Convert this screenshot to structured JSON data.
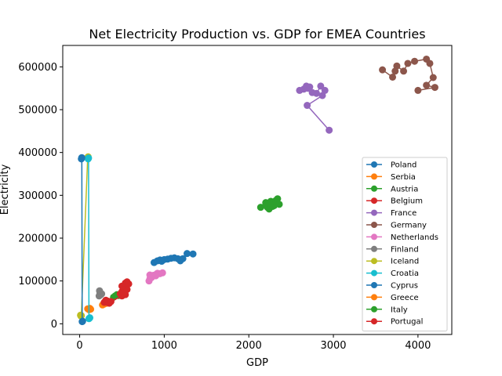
{
  "chart_data": {
    "type": "line",
    "title": "Net Electricity Production vs. GDP for EMEA Countries",
    "xlabel": "GDP",
    "ylabel": "Electricity",
    "xlim": [
      -200,
      4400
    ],
    "ylim": [
      -25000,
      650000
    ],
    "x_ticks": [
      0,
      1000,
      2000,
      3000,
      4000
    ],
    "y_ticks": [
      0,
      100000,
      200000,
      300000,
      400000,
      500000,
      600000
    ],
    "legend_position": "lower-right",
    "series": [
      {
        "name": "Poland",
        "color": "#1f77b4",
        "points": [
          [
            880,
            143000
          ],
          [
            920,
            147000
          ],
          [
            950,
            149000
          ],
          [
            970,
            146000
          ],
          [
            1000,
            150000
          ],
          [
            1040,
            151000
          ],
          [
            1080,
            153000
          ],
          [
            1120,
            154000
          ],
          [
            1160,
            152000
          ],
          [
            1190,
            147000
          ],
          [
            1220,
            152000
          ],
          [
            1270,
            164000
          ],
          [
            1340,
            163000
          ]
        ]
      },
      {
        "name": "Serbia",
        "color": "#ff7f0e",
        "points": [
          [
            95,
            35000
          ],
          [
            110,
            33000
          ],
          [
            120,
            36000
          ],
          [
            130,
            34000
          ]
        ]
      },
      {
        "name": "Austria",
        "color": "#2ca02c",
        "points": [
          [
            400,
            62000
          ],
          [
            420,
            65000
          ],
          [
            440,
            68000
          ],
          [
            460,
            66000
          ],
          [
            480,
            67000
          ]
        ]
      },
      {
        "name": "Belgium",
        "color": "#d62728",
        "points": [
          [
            480,
            70000
          ],
          [
            500,
            75000
          ],
          [
            520,
            80000
          ],
          [
            540,
            85000
          ],
          [
            560,
            90000
          ],
          [
            580,
            93000
          ]
        ]
      },
      {
        "name": "France",
        "color": "#9467bd",
        "points": [
          [
            2600,
            545000
          ],
          [
            2650,
            548000
          ],
          [
            2680,
            555000
          ],
          [
            2700,
            550000
          ],
          [
            2720,
            553000
          ],
          [
            2750,
            540000
          ],
          [
            2800,
            538000
          ],
          [
            2850,
            555000
          ],
          [
            2900,
            545000
          ],
          [
            2870,
            533000
          ],
          [
            2690,
            510000
          ],
          [
            2950,
            452000
          ]
        ]
      },
      {
        "name": "Germany",
        "color": "#8c564b",
        "points": [
          [
            3580,
            593000
          ],
          [
            3700,
            576000
          ],
          [
            3730,
            590000
          ],
          [
            3750,
            602000
          ],
          [
            3830,
            590000
          ],
          [
            3880,
            608000
          ],
          [
            3960,
            613000
          ],
          [
            4100,
            618000
          ],
          [
            4140,
            608000
          ],
          [
            4180,
            575000
          ],
          [
            4100,
            557000
          ],
          [
            4200,
            552000
          ],
          [
            4000,
            545000
          ]
        ]
      },
      {
        "name": "Netherlands",
        "color": "#e377c2",
        "points": [
          [
            820,
            100000
          ],
          [
            830,
            105000
          ],
          [
            850,
            108000
          ],
          [
            870,
            113000
          ],
          [
            900,
            115000
          ],
          [
            920,
            118000
          ],
          [
            950,
            117000
          ],
          [
            980,
            119000
          ],
          [
            830,
            114000
          ],
          [
            900,
            112000
          ]
        ]
      },
      {
        "name": "Finland",
        "color": "#7f7f7f",
        "points": [
          [
            230,
            65000
          ],
          [
            240,
            72000
          ],
          [
            250,
            68000
          ],
          [
            260,
            70000
          ],
          [
            235,
            77000
          ]
        ]
      },
      {
        "name": "Iceland",
        "color": "#bcbd22",
        "points": [
          [
            10,
            20000
          ],
          [
            15,
            18000
          ],
          [
            20,
            19000
          ],
          [
            95,
            388000
          ],
          [
            100,
            390000
          ]
        ]
      },
      {
        "name": "Croatia",
        "color": "#17becf",
        "points": [
          [
            100,
            385000
          ],
          [
            105,
            387000
          ],
          [
            110,
            12000
          ],
          [
            115,
            13000
          ],
          [
            120,
            14000
          ]
        ]
      },
      {
        "name": "Cyprus",
        "color": "#1f77b4",
        "points": [
          [
            20,
            385000
          ],
          [
            25,
            388000
          ],
          [
            30,
            5000
          ],
          [
            35,
            6000
          ]
        ]
      },
      {
        "name": "Greece",
        "color": "#ff7f0e",
        "points": [
          [
            270,
            44000
          ],
          [
            290,
            46000
          ],
          [
            300,
            50000
          ],
          [
            320,
            48000
          ],
          [
            340,
            52000
          ]
        ]
      },
      {
        "name": "Italy",
        "color": "#2ca02c",
        "points": [
          [
            2140,
            272000
          ],
          [
            2200,
            278000
          ],
          [
            2220,
            272000
          ],
          [
            2240,
            268000
          ],
          [
            2260,
            286000
          ],
          [
            2280,
            282000
          ],
          [
            2300,
            276000
          ],
          [
            2320,
            288000
          ],
          [
            2340,
            292000
          ],
          [
            2360,
            279000
          ],
          [
            2280,
            274000
          ],
          [
            2250,
            280000
          ],
          [
            2200,
            283000
          ]
        ]
      },
      {
        "name": "Portugal",
        "color": "#d62728",
        "points": [
          [
            290,
            50000
          ],
          [
            300,
            52000
          ],
          [
            310,
            55000
          ],
          [
            320,
            50000
          ],
          [
            330,
            53000
          ],
          [
            350,
            48000
          ],
          [
            370,
            52000
          ],
          [
            500,
            65000
          ],
          [
            520,
            72000
          ],
          [
            540,
            68000
          ],
          [
            560,
            80000
          ],
          [
            500,
            88000
          ],
          [
            540,
            95000
          ],
          [
            560,
            98000
          ],
          [
            520,
            70000
          ]
        ]
      }
    ]
  }
}
